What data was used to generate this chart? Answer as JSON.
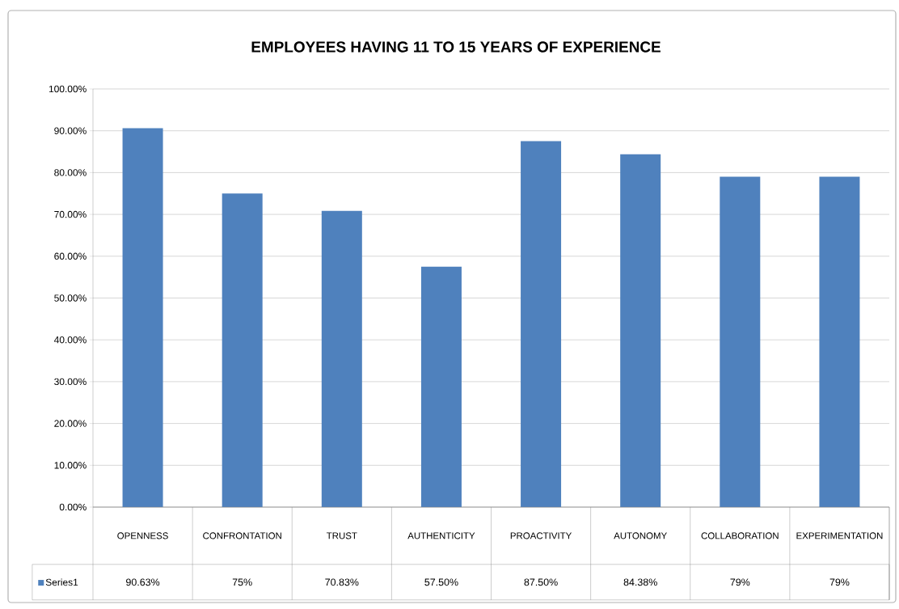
{
  "chart_data": {
    "type": "bar",
    "title": "EMPLOYEES HAVING 11 TO 15 YEARS OF EXPERIENCE",
    "categories": [
      "OPENNESS",
      "CONFRONTATION",
      "TRUST",
      "AUTHENTICITY",
      "PROACTIVITY",
      "AUTONOMY",
      "COLLABORATION",
      "EXPERIMENTATION"
    ],
    "series": [
      {
        "name": "Series1",
        "color": "#4f81bd",
        "values": [
          90.63,
          75,
          70.83,
          57.5,
          87.5,
          84.38,
          79,
          79
        ],
        "value_labels": [
          "90.63%",
          "75%",
          "70.83%",
          "57.50%",
          "87.50%",
          "84.38%",
          "79%",
          "79%"
        ]
      }
    ],
    "ylim": [
      0,
      100
    ],
    "yticks": [
      {
        "value": 0,
        "label": "0.00%"
      },
      {
        "value": 10,
        "label": "10.00%"
      },
      {
        "value": 20,
        "label": "20.00%"
      },
      {
        "value": 30,
        "label": "30.00%"
      },
      {
        "value": 40,
        "label": "40.00%"
      },
      {
        "value": 50,
        "label": "50.00%"
      },
      {
        "value": 60,
        "label": "60.00%"
      },
      {
        "value": 70,
        "label": "70.00%"
      },
      {
        "value": 80,
        "label": "80.00%"
      },
      {
        "value": 90,
        "label": "90.00%"
      },
      {
        "value": 100,
        "label": "100.00%"
      }
    ],
    "grid": "y",
    "legend": "bottom"
  }
}
